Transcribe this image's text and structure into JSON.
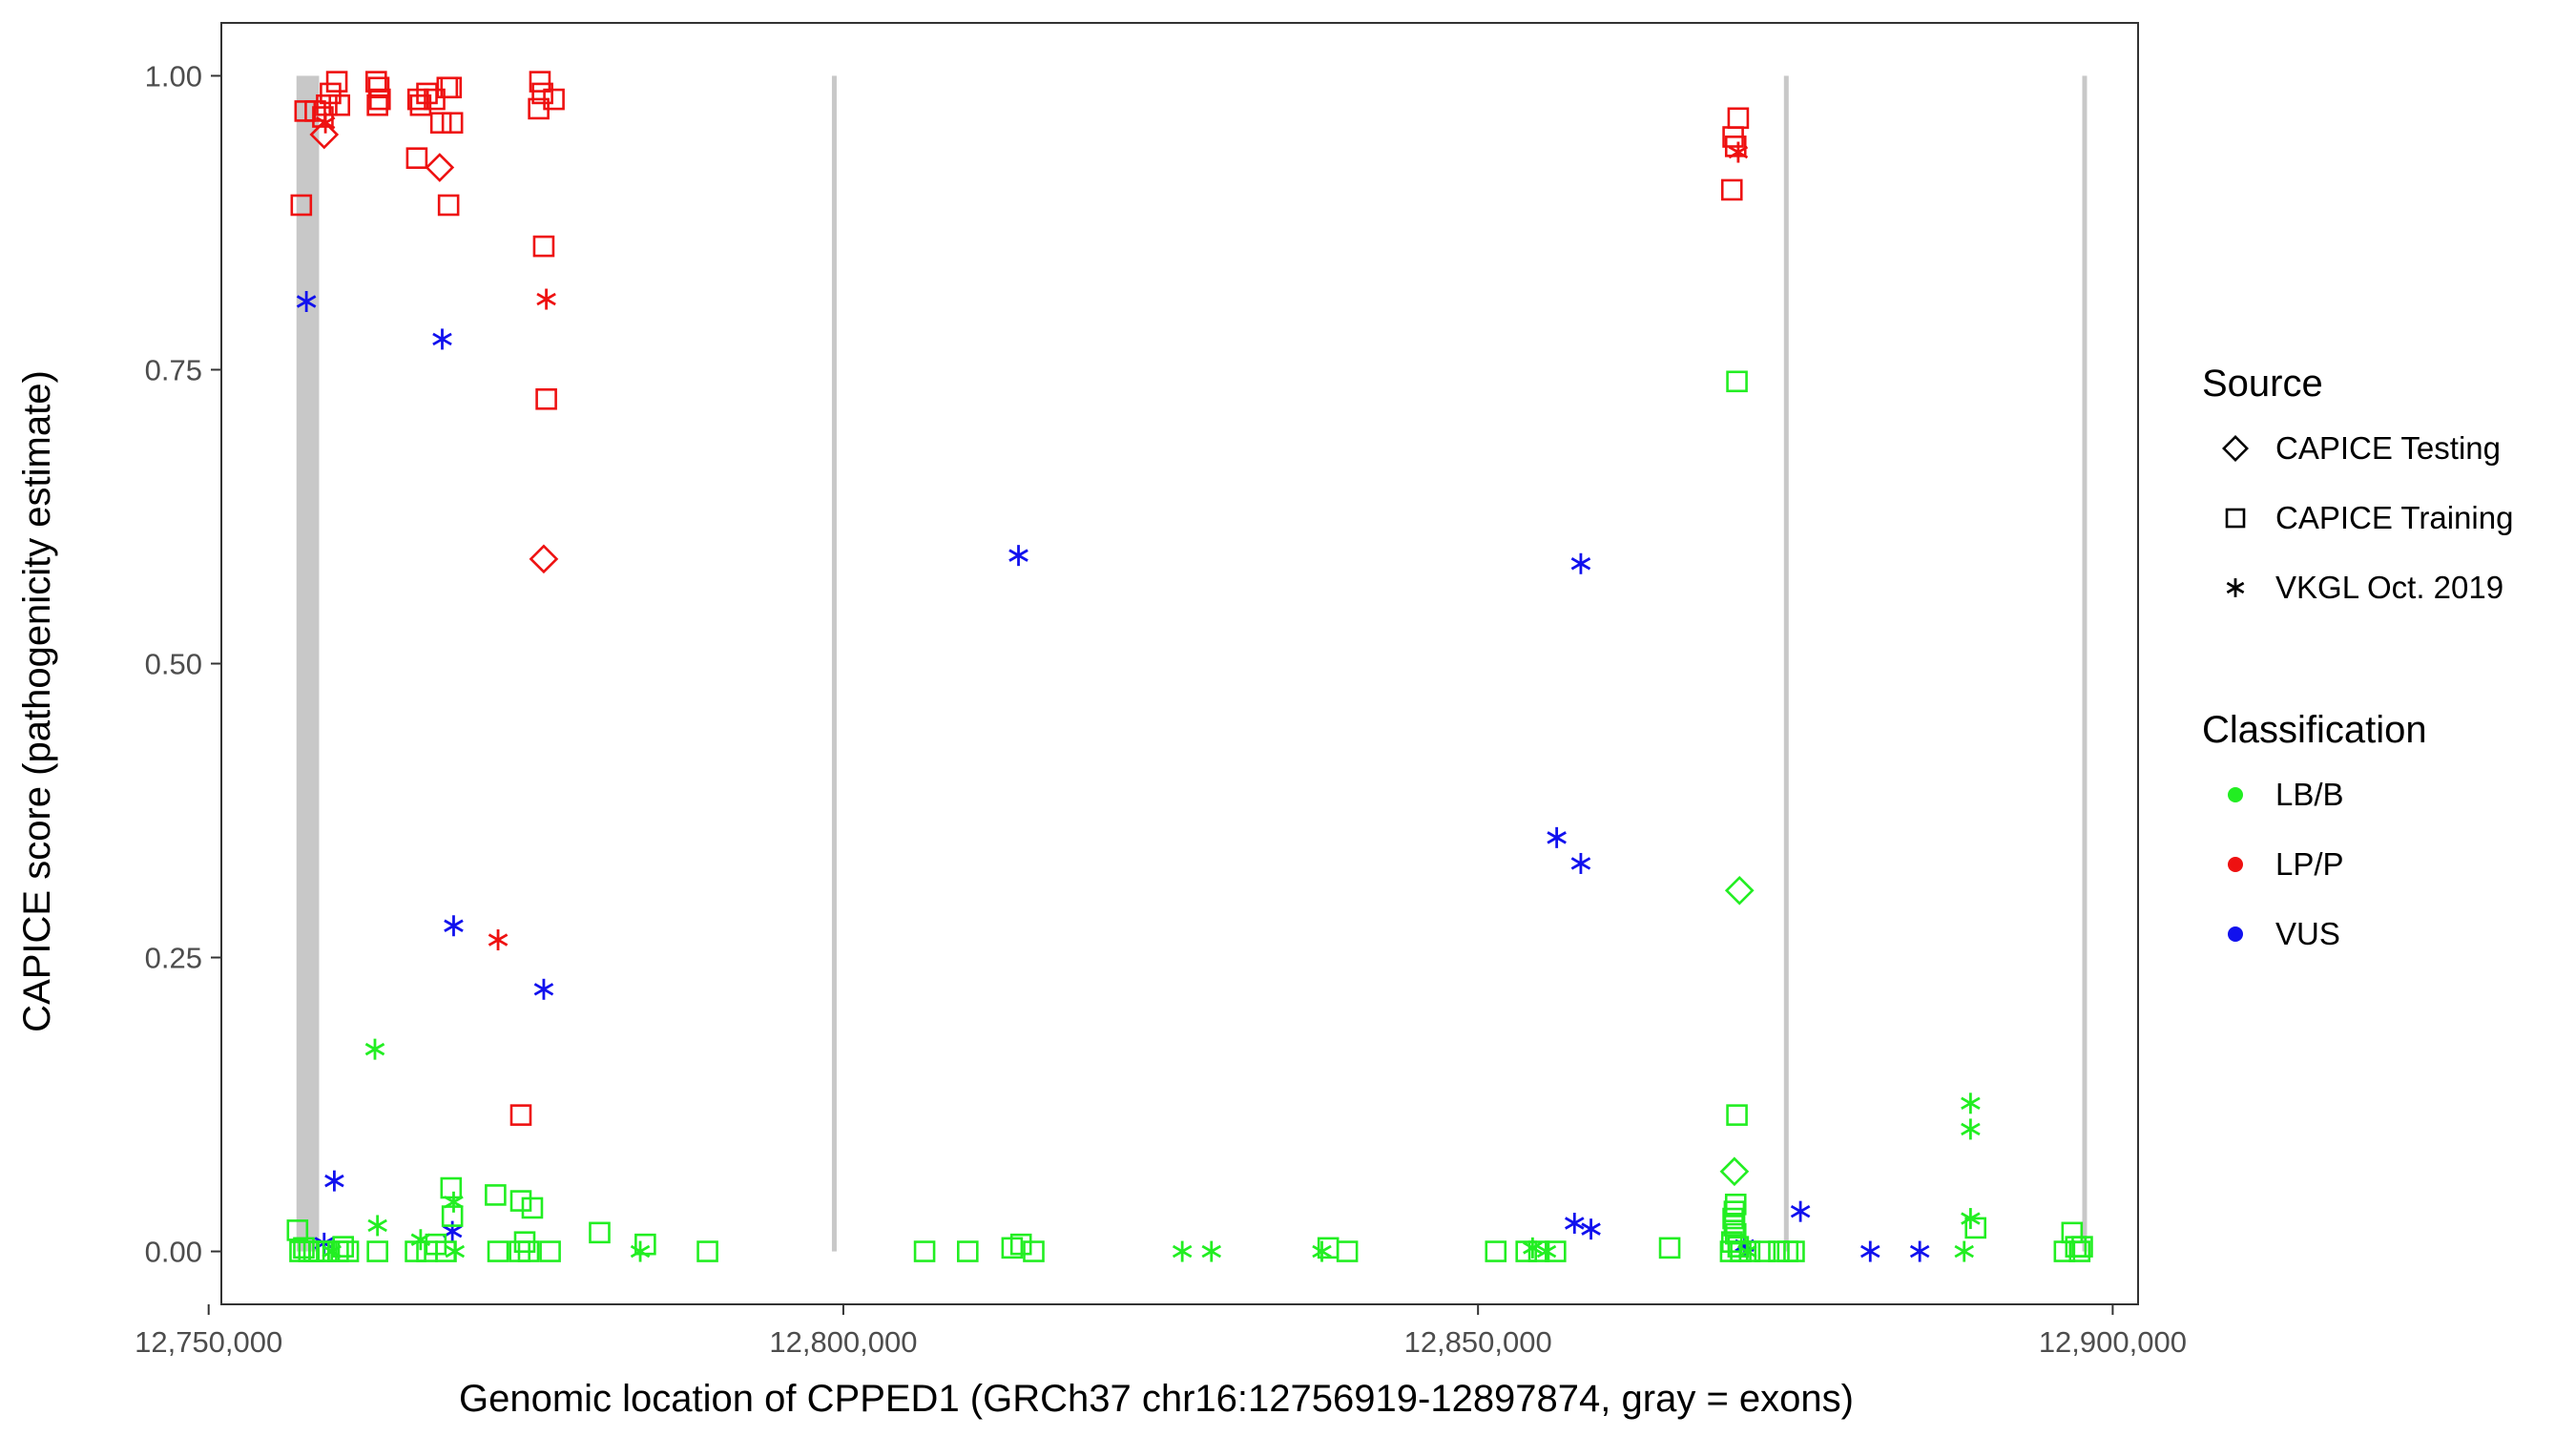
{
  "chart_data": {
    "type": "scatter",
    "title": "",
    "xlabel": "Genomic location of CPPED1 (GRCh37 chr16:12756919-12897874, gray = exons)",
    "ylabel": "CAPICE score (pathogenicity estimate)",
    "xlim": [
      12751000,
      12902000
    ],
    "ylim": [
      -0.045,
      1.045
    ],
    "x_ticks": [
      12750000,
      12800000,
      12850000,
      12900000
    ],
    "x_tick_labels": [
      "12,750,000",
      "12,800,000",
      "12,850,000",
      "12,900,000"
    ],
    "y_ticks": [
      0,
      0.25,
      0.5,
      0.75,
      1.0
    ],
    "y_tick_labels": [
      "0.00",
      "0.25",
      "0.50",
      "0.75",
      "1.00"
    ],
    "grid": false,
    "exons": [
      [
        12756919,
        12758700
      ],
      [
        12799100,
        12799400
      ],
      [
        12874100,
        12874400
      ],
      [
        12897600,
        12897874
      ]
    ],
    "legend": {
      "position": "right",
      "source_title": "Source",
      "source_entries": [
        {
          "label": "CAPICE Testing",
          "shape": "diamond"
        },
        {
          "label": "CAPICE Training",
          "shape": "square"
        },
        {
          "label": "VKGL Oct. 2019",
          "shape": "asterisk"
        }
      ],
      "class_title": "Classification",
      "class_entries": [
        {
          "label": "LB/B",
          "color": "#22ee22"
        },
        {
          "label": "LP/P",
          "color": "#ee1111"
        },
        {
          "label": "VUS",
          "color": "#1111ee"
        }
      ]
    },
    "colors": {
      "LB/B": "#22ee22",
      "LP/P": "#ee1111",
      "VUS": "#1111ee",
      "exon": "#c8c8c8"
    },
    "points": [
      [
        12757300,
        0.89,
        "LP/P",
        "square"
      ],
      [
        12757600,
        0.97,
        "LP/P",
        "square"
      ],
      [
        12758400,
        0.97,
        "LP/P",
        "square"
      ],
      [
        12759000,
        0.965,
        "LP/P",
        "square"
      ],
      [
        12759300,
        0.975,
        "LP/P",
        "square"
      ],
      [
        12759600,
        0.985,
        "LP/P",
        "square"
      ],
      [
        12760100,
        0.995,
        "LP/P",
        "square"
      ],
      [
        12760300,
        0.975,
        "LP/P",
        "square"
      ],
      [
        12759200,
        0.96,
        "LP/P",
        "asterisk"
      ],
      [
        12759100,
        0.95,
        "LP/P",
        "diamond"
      ],
      [
        12763200,
        0.995,
        "LP/P",
        "square"
      ],
      [
        12763400,
        0.99,
        "LP/P",
        "square"
      ],
      [
        12763500,
        0.98,
        "LP/P",
        "square"
      ],
      [
        12763300,
        0.975,
        "LP/P",
        "square"
      ],
      [
        12766500,
        0.98,
        "LP/P",
        "square"
      ],
      [
        12766700,
        0.975,
        "LP/P",
        "square"
      ],
      [
        12767200,
        0.985,
        "LP/P",
        "square"
      ],
      [
        12767800,
        0.98,
        "LP/P",
        "square"
      ],
      [
        12768300,
        0.96,
        "LP/P",
        "square"
      ],
      [
        12768800,
        0.99,
        "LP/P",
        "square"
      ],
      [
        12769100,
        0.99,
        "LP/P",
        "square"
      ],
      [
        12769200,
        0.96,
        "LP/P",
        "square"
      ],
      [
        12766400,
        0.93,
        "LP/P",
        "square"
      ],
      [
        12768200,
        0.922,
        "LP/P",
        "diamond"
      ],
      [
        12768900,
        0.89,
        "LP/P",
        "square"
      ],
      [
        12776100,
        0.995,
        "LP/P",
        "square"
      ],
      [
        12776300,
        0.985,
        "LP/P",
        "square"
      ],
      [
        12776000,
        0.972,
        "LP/P",
        "square"
      ],
      [
        12777200,
        0.98,
        "LP/P",
        "square"
      ],
      [
        12776400,
        0.855,
        "LP/P",
        "square"
      ],
      [
        12776600,
        0.81,
        "LP/P",
        "asterisk"
      ],
      [
        12776600,
        0.725,
        "LP/P",
        "square"
      ],
      [
        12776400,
        0.589,
        "LP/P",
        "diamond"
      ],
      [
        12772800,
        0.265,
        "LP/P",
        "asterisk"
      ],
      [
        12774600,
        0.116,
        "LP/P",
        "square"
      ],
      [
        12870500,
        0.964,
        "LP/P",
        "square"
      ],
      [
        12870100,
        0.948,
        "LP/P",
        "square"
      ],
      [
        12870300,
        0.94,
        "LP/P",
        "square"
      ],
      [
        12870500,
        0.935,
        "LP/P",
        "asterisk"
      ],
      [
        12870000,
        0.903,
        "LP/P",
        "square"
      ],
      [
        12757700,
        0.808,
        "VUS",
        "asterisk"
      ],
      [
        12768400,
        0.776,
        "VUS",
        "asterisk"
      ],
      [
        12769300,
        0.277,
        "VUS",
        "asterisk"
      ],
      [
        12776400,
        0.223,
        "VUS",
        "asterisk"
      ],
      [
        12759900,
        0.06,
        "VUS",
        "asterisk"
      ],
      [
        12769200,
        0.017,
        "VUS",
        "asterisk"
      ],
      [
        12759100,
        0.007,
        "VUS",
        "asterisk"
      ],
      [
        12813800,
        0.592,
        "VUS",
        "asterisk"
      ],
      [
        12858100,
        0.585,
        "VUS",
        "asterisk"
      ],
      [
        12856200,
        0.352,
        "VUS",
        "asterisk"
      ],
      [
        12858100,
        0.33,
        "VUS",
        "asterisk"
      ],
      [
        12857600,
        0.024,
        "VUS",
        "asterisk"
      ],
      [
        12858900,
        0.019,
        "VUS",
        "asterisk"
      ],
      [
        12871000,
        0.005,
        "VUS",
        "asterisk"
      ],
      [
        12875400,
        0.034,
        "VUS",
        "asterisk"
      ],
      [
        12880900,
        0.0,
        "VUS",
        "asterisk"
      ],
      [
        12884800,
        0.0,
        "VUS",
        "asterisk"
      ],
      [
        12870400,
        0.74,
        "LB/B",
        "square"
      ],
      [
        12870600,
        0.307,
        "LB/B",
        "diamond"
      ],
      [
        12870400,
        0.116,
        "LB/B",
        "square"
      ],
      [
        12870200,
        0.068,
        "LB/B",
        "diamond"
      ],
      [
        12870300,
        0.04,
        "LB/B",
        "square"
      ],
      [
        12870200,
        0.034,
        "LB/B",
        "square"
      ],
      [
        12870100,
        0.028,
        "LB/B",
        "square"
      ],
      [
        12870200,
        0.022,
        "LB/B",
        "square"
      ],
      [
        12870300,
        0.015,
        "LB/B",
        "square"
      ],
      [
        12870000,
        0.008,
        "LB/B",
        "square"
      ],
      [
        12870500,
        0.004,
        "LB/B",
        "square"
      ],
      [
        12869900,
        0.0,
        "LB/B",
        "square"
      ],
      [
        12870700,
        0.0,
        "LB/B",
        "square"
      ],
      [
        12871200,
        0.0,
        "LB/B",
        "asterisk"
      ],
      [
        12871400,
        0.0,
        "LB/B",
        "square"
      ],
      [
        12872600,
        0.0,
        "LB/B",
        "square"
      ],
      [
        12873700,
        0.0,
        "LB/B",
        "square"
      ],
      [
        12874400,
        0.0,
        "LB/B",
        "square"
      ],
      [
        12874900,
        0.0,
        "LB/B",
        "square"
      ],
      [
        12888800,
        0.126,
        "LB/B",
        "asterisk"
      ],
      [
        12888800,
        0.104,
        "LB/B",
        "asterisk"
      ],
      [
        12888800,
        0.028,
        "LB/B",
        "asterisk"
      ],
      [
        12889200,
        0.02,
        "LB/B",
        "square"
      ],
      [
        12888300,
        0.0,
        "LB/B",
        "asterisk"
      ],
      [
        12896800,
        0.016,
        "LB/B",
        "square"
      ],
      [
        12896200,
        0.0,
        "LB/B",
        "square"
      ],
      [
        12897100,
        0.004,
        "LB/B",
        "square"
      ],
      [
        12897600,
        0.004,
        "LB/B",
        "square"
      ],
      [
        12897400,
        0.0,
        "LB/B",
        "square"
      ],
      [
        12757000,
        0.018,
        "LB/B",
        "square"
      ],
      [
        12757200,
        0.0,
        "LB/B",
        "square"
      ],
      [
        12757500,
        0.003,
        "LB/B",
        "square"
      ],
      [
        12757900,
        0.0,
        "LB/B",
        "square"
      ],
      [
        12758300,
        0.0,
        "LB/B",
        "square"
      ],
      [
        12758700,
        0.0,
        "LB/B",
        "square"
      ],
      [
        12759300,
        0.0,
        "LB/B",
        "square"
      ],
      [
        12759700,
        0.0,
        "LB/B",
        "asterisk"
      ],
      [
        12760200,
        0.0,
        "LB/B",
        "square"
      ],
      [
        12760600,
        0.004,
        "LB/B",
        "square"
      ],
      [
        12761000,
        0.0,
        "LB/B",
        "square"
      ],
      [
        12763100,
        0.172,
        "LB/B",
        "asterisk"
      ],
      [
        12763300,
        0.022,
        "LB/B",
        "asterisk"
      ],
      [
        12763300,
        0.0,
        "LB/B",
        "square"
      ],
      [
        12766300,
        0.0,
        "LB/B",
        "square"
      ],
      [
        12766700,
        0.01,
        "LB/B",
        "asterisk"
      ],
      [
        12767200,
        0.0,
        "LB/B",
        "square"
      ],
      [
        12767900,
        0.006,
        "LB/B",
        "square"
      ],
      [
        12768700,
        0.0,
        "LB/B",
        "square"
      ],
      [
        12769100,
        0.054,
        "LB/B",
        "square"
      ],
      [
        12769300,
        0.042,
        "LB/B",
        "asterisk"
      ],
      [
        12769200,
        0.03,
        "LB/B",
        "square"
      ],
      [
        12769400,
        0.0,
        "LB/B",
        "asterisk"
      ],
      [
        12772600,
        0.048,
        "LB/B",
        "square"
      ],
      [
        12772800,
        0.0,
        "LB/B",
        "square"
      ],
      [
        12774600,
        0.043,
        "LB/B",
        "square"
      ],
      [
        12774500,
        0.0,
        "LB/B",
        "square"
      ],
      [
        12774900,
        0.008,
        "LB/B",
        "square"
      ],
      [
        12775500,
        0.037,
        "LB/B",
        "square"
      ],
      [
        12775200,
        0.0,
        "LB/B",
        "square"
      ],
      [
        12776900,
        0.0,
        "LB/B",
        "square"
      ],
      [
        12780800,
        0.016,
        "LB/B",
        "square"
      ],
      [
        12784000,
        0.0,
        "LB/B",
        "asterisk"
      ],
      [
        12784400,
        0.006,
        "LB/B",
        "square"
      ],
      [
        12789300,
        0.0,
        "LB/B",
        "square"
      ],
      [
        12806400,
        0.0,
        "LB/B",
        "square"
      ],
      [
        12809800,
        0.0,
        "LB/B",
        "square"
      ],
      [
        12813300,
        0.003,
        "LB/B",
        "square"
      ],
      [
        12814000,
        0.006,
        "LB/B",
        "square"
      ],
      [
        12815000,
        0.0,
        "LB/B",
        "square"
      ],
      [
        12826700,
        0.0,
        "LB/B",
        "asterisk"
      ],
      [
        12829000,
        0.0,
        "LB/B",
        "asterisk"
      ],
      [
        12837700,
        0.0,
        "LB/B",
        "asterisk"
      ],
      [
        12838200,
        0.003,
        "LB/B",
        "square"
      ],
      [
        12839700,
        0.0,
        "LB/B",
        "square"
      ],
      [
        12851400,
        0.0,
        "LB/B",
        "square"
      ],
      [
        12853800,
        0.0,
        "LB/B",
        "square"
      ],
      [
        12854300,
        0.003,
        "LB/B",
        "asterisk"
      ],
      [
        12854800,
        0.0,
        "LB/B",
        "square"
      ],
      [
        12855400,
        0.0,
        "LB/B",
        "asterisk"
      ],
      [
        12856100,
        0.0,
        "LB/B",
        "square"
      ],
      [
        12865100,
        0.003,
        "LB/B",
        "square"
      ]
    ]
  }
}
